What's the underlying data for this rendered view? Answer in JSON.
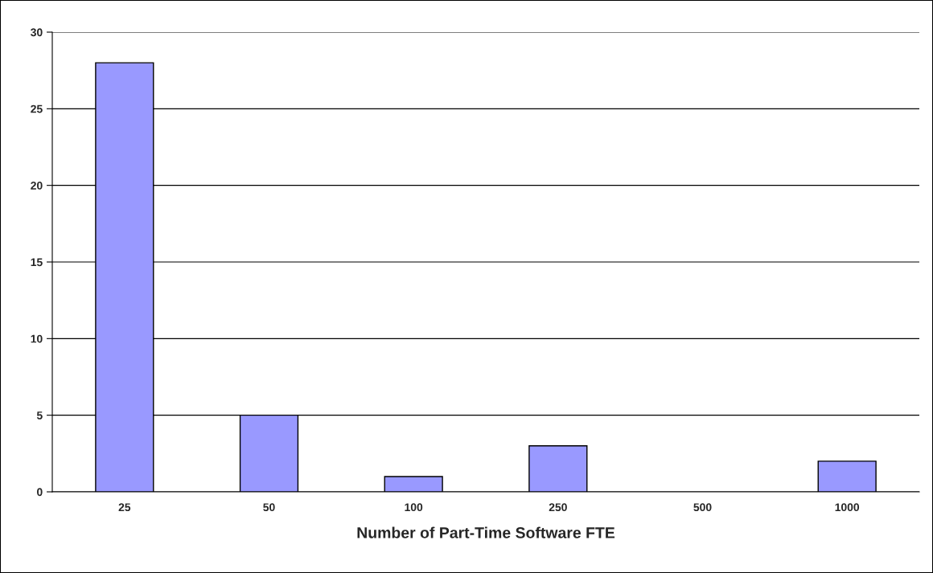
{
  "chart_data": {
    "type": "bar",
    "xlabel": "Number of Part-Time Software FTE",
    "categories": [
      "25",
      "50",
      "100",
      "250",
      "500",
      "1000"
    ],
    "values": [
      28,
      5,
      1,
      3,
      0,
      2
    ],
    "color": "#9999ff",
    "ylim": [
      0,
      30
    ],
    "yticks": [
      0,
      5,
      10,
      15,
      20,
      25,
      30
    ],
    "grid": "y",
    "legend": false
  }
}
